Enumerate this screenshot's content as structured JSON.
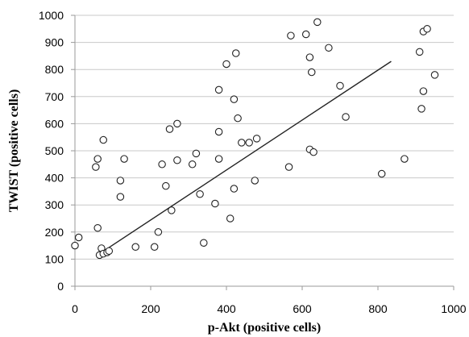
{
  "chart_data": {
    "type": "scatter",
    "xlabel": "p-Akt (positive cells)",
    "ylabel": "TWIST (positive cells)",
    "xlim": [
      0,
      1000
    ],
    "ylim": [
      0,
      1000
    ],
    "x_ticks": [
      0,
      200,
      400,
      600,
      800,
      1000
    ],
    "y_ticks": [
      0,
      100,
      200,
      300,
      400,
      500,
      600,
      700,
      800,
      900,
      1000
    ],
    "grid": "horizontal",
    "marker": "open-circle",
    "points": [
      [
        0,
        150
      ],
      [
        10,
        180
      ],
      [
        55,
        440
      ],
      [
        60,
        470
      ],
      [
        60,
        215
      ],
      [
        65,
        115
      ],
      [
        70,
        140
      ],
      [
        75,
        540
      ],
      [
        75,
        120
      ],
      [
        85,
        125
      ],
      [
        90,
        130
      ],
      [
        120,
        390
      ],
      [
        120,
        330
      ],
      [
        130,
        470
      ],
      [
        160,
        145
      ],
      [
        210,
        145
      ],
      [
        220,
        200
      ],
      [
        230,
        450
      ],
      [
        240,
        370
      ],
      [
        250,
        580
      ],
      [
        255,
        280
      ],
      [
        270,
        600
      ],
      [
        270,
        465
      ],
      [
        310,
        450
      ],
      [
        320,
        490
      ],
      [
        330,
        340
      ],
      [
        340,
        160
      ],
      [
        370,
        305
      ],
      [
        380,
        725
      ],
      [
        380,
        570
      ],
      [
        380,
        470
      ],
      [
        400,
        820
      ],
      [
        410,
        250
      ],
      [
        420,
        690
      ],
      [
        420,
        360
      ],
      [
        425,
        860
      ],
      [
        430,
        620
      ],
      [
        440,
        530
      ],
      [
        460,
        530
      ],
      [
        475,
        390
      ],
      [
        480,
        545
      ],
      [
        565,
        440
      ],
      [
        570,
        925
      ],
      [
        610,
        930
      ],
      [
        620,
        845
      ],
      [
        620,
        505
      ],
      [
        625,
        790
      ],
      [
        630,
        495
      ],
      [
        640,
        975
      ],
      [
        670,
        880
      ],
      [
        700,
        740
      ],
      [
        715,
        625
      ],
      [
        810,
        415
      ],
      [
        870,
        470
      ],
      [
        910,
        865
      ],
      [
        915,
        655
      ],
      [
        920,
        940
      ],
      [
        920,
        720
      ],
      [
        930,
        950
      ],
      [
        950,
        780
      ]
    ],
    "trendline": {
      "x": [
        65,
        835
      ],
      "y": [
        120,
        830
      ]
    }
  }
}
